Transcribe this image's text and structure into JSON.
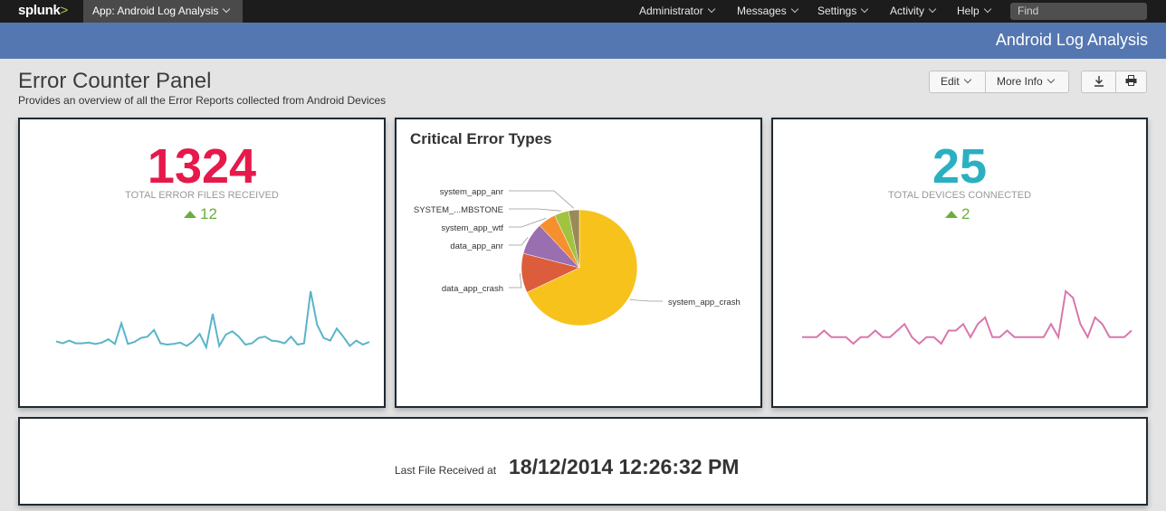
{
  "topbar": {
    "logo_text": "splunk",
    "logo_mark": ">",
    "app_menu_label": "App: Android Log Analysis",
    "nav": [
      {
        "label": "Administrator"
      },
      {
        "label": "Messages"
      },
      {
        "label": "Settings"
      },
      {
        "label": "Activity"
      },
      {
        "label": "Help"
      }
    ],
    "find_placeholder": "Find"
  },
  "appbar": {
    "title": "Android Log Analysis"
  },
  "header": {
    "title": "Error Counter Panel",
    "description": "Provides an overview of all the Error Reports collected from Android Devices",
    "edit_label": "Edit",
    "more_info_label": "More Info"
  },
  "panels": {
    "errors": {
      "value": "1324",
      "label": "TOTAL ERROR FILES RECEIVED",
      "delta": "12",
      "value_color": "#e6194b",
      "spark_color": "#5ab4c9",
      "spark": [
        45,
        42,
        46,
        42,
        42,
        43,
        41,
        43,
        48,
        41,
        72,
        41,
        44,
        50,
        52,
        62,
        42,
        40,
        41,
        43,
        38,
        45,
        56,
        36,
        86,
        38,
        55,
        60,
        52,
        40,
        42,
        50,
        52,
        46,
        45,
        42,
        52,
        40,
        42,
        120,
        70,
        50,
        46,
        64,
        52,
        38,
        46,
        40,
        44
      ]
    },
    "devices": {
      "value": "25",
      "label": "TOTAL DEVICES CONNECTED",
      "delta": "2",
      "value_color": "#2ab0c1",
      "spark_color": "#d877ac",
      "spark": [
        3,
        3,
        3,
        4,
        3,
        3,
        3,
        2,
        3,
        3,
        4,
        3,
        3,
        4,
        5,
        3,
        2,
        3,
        3,
        2,
        4,
        4,
        5,
        3,
        5,
        6,
        3,
        3,
        4,
        3,
        3,
        3,
        3,
        3,
        5,
        3,
        10,
        9,
        5,
        3,
        6,
        5,
        3,
        3,
        3,
        4
      ]
    },
    "critical": {
      "title": "Critical Error Types"
    },
    "last_file": {
      "label": "Last File Received at",
      "value": "18/12/2014 12:26:32 PM"
    }
  },
  "chart_data": {
    "type": "pie",
    "title": "Critical Error Types",
    "slices": [
      {
        "label": "system_app_crash",
        "value": 68,
        "color": "#f8c21d"
      },
      {
        "label": "data_app_crash",
        "value": 11,
        "color": "#dc5d3c"
      },
      {
        "label": "data_app_anr",
        "value": 9,
        "color": "#9a6fb0"
      },
      {
        "label": "system_app_wtf",
        "value": 5,
        "color": "#f6902e"
      },
      {
        "label": "SYSTEM_...MBSTONE",
        "value": 4,
        "color": "#a1c33f"
      },
      {
        "label": "system_app_anr",
        "value": 3,
        "color": "#9b8a55"
      }
    ]
  }
}
